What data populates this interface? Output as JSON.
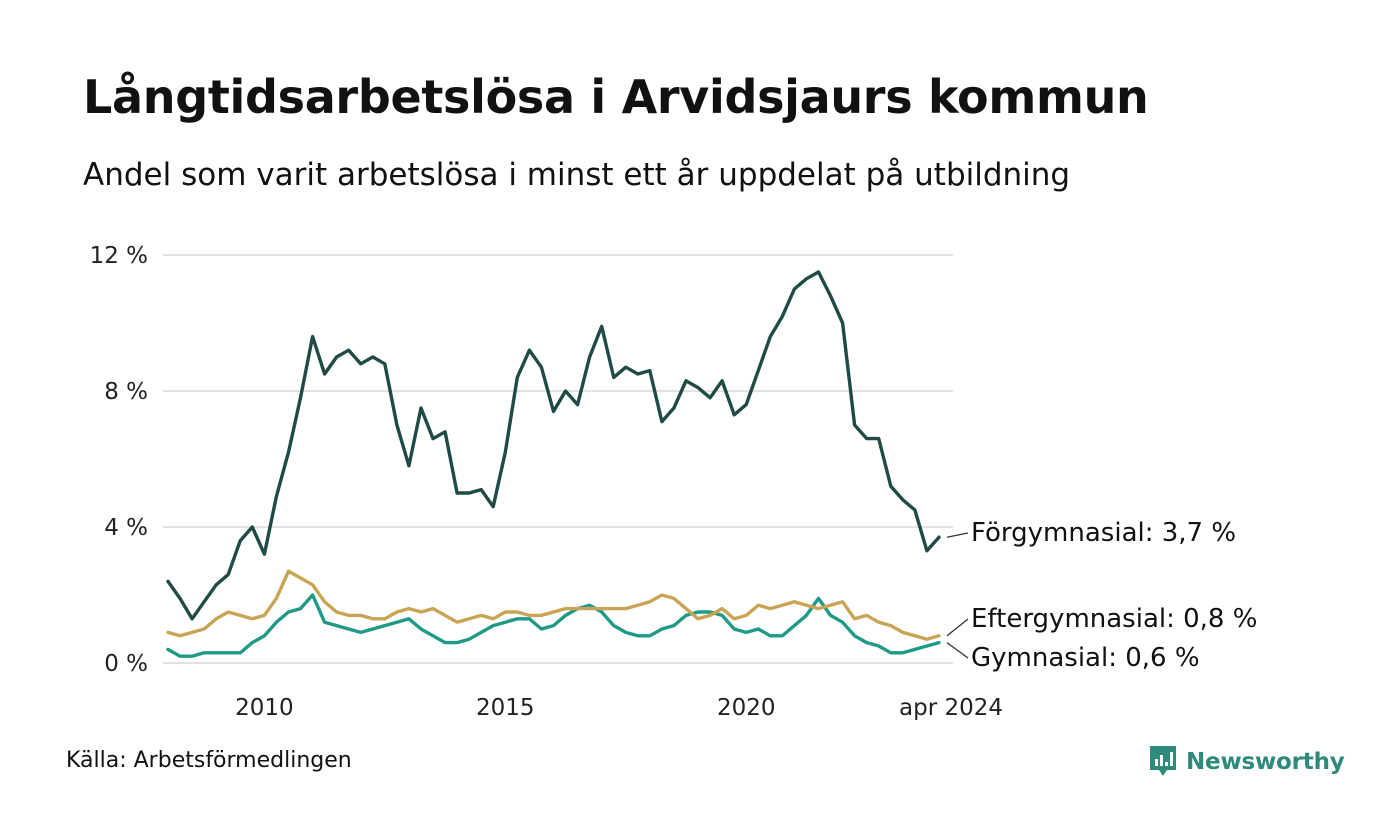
{
  "title": "Långtidsarbetslösa i Arvidsjaurs kommun",
  "subtitle": "Andel som varit arbetslösa i minst ett år uppdelat på utbildning",
  "source": "Källa: Arbetsförmedlingen",
  "brand": {
    "name": "Newsworthy",
    "color": "#2f8a7c"
  },
  "chart_data": {
    "type": "line",
    "title": "Långtidsarbetslösa i Arvidsjaurs kommun",
    "xlabel": "",
    "ylabel": "",
    "x_start": 2008.0,
    "x_step": 0.25,
    "xlim": [
      2008.0,
      2024.25
    ],
    "ylim": [
      0,
      12
    ],
    "yticks": [
      0,
      4,
      8,
      12
    ],
    "ytick_labels": [
      "0 %",
      "4 %",
      "8 %",
      "12 %"
    ],
    "xticks": [
      2010,
      2015,
      2020,
      2024.25
    ],
    "xtick_labels": [
      "2010",
      "2015",
      "2020",
      "apr 2024"
    ],
    "grid": true,
    "series": [
      {
        "name": "Förgymnasial",
        "label": "Förgymnasial: 3,7 %",
        "color": "#1f4a45",
        "values": [
          2.4,
          1.9,
          1.3,
          1.8,
          2.3,
          2.6,
          3.6,
          4.0,
          3.2,
          4.9,
          6.2,
          7.8,
          9.6,
          8.5,
          9.0,
          9.2,
          8.8,
          9.0,
          8.8,
          7.0,
          5.8,
          7.5,
          6.6,
          6.8,
          5.0,
          5.0,
          5.1,
          4.6,
          6.2,
          8.4,
          9.2,
          8.7,
          7.4,
          8.0,
          7.6,
          9.0,
          9.9,
          8.4,
          8.7,
          8.5,
          8.6,
          7.1,
          7.5,
          8.3,
          8.1,
          7.8,
          8.3,
          7.3,
          7.6,
          8.6,
          9.6,
          10.2,
          11.0,
          11.3,
          11.5,
          10.8,
          10.0,
          7.0,
          6.6,
          6.6,
          5.2,
          4.8,
          4.5,
          3.3,
          3.7
        ]
      },
      {
        "name": "Eftergymnasial",
        "label": "Eftergymnasial: 0,8 %",
        "color": "#c9a455",
        "values": [
          0.9,
          0.8,
          0.9,
          1.0,
          1.3,
          1.5,
          1.4,
          1.3,
          1.4,
          1.9,
          2.7,
          2.5,
          2.3,
          1.8,
          1.5,
          1.4,
          1.4,
          1.3,
          1.3,
          1.5,
          1.6,
          1.5,
          1.6,
          1.4,
          1.2,
          1.3,
          1.4,
          1.3,
          1.5,
          1.5,
          1.4,
          1.4,
          1.5,
          1.6,
          1.6,
          1.6,
          1.6,
          1.6,
          1.6,
          1.7,
          1.8,
          2.0,
          1.9,
          1.6,
          1.3,
          1.4,
          1.6,
          1.3,
          1.4,
          1.7,
          1.6,
          1.7,
          1.8,
          1.7,
          1.6,
          1.7,
          1.8,
          1.3,
          1.4,
          1.2,
          1.1,
          0.9,
          0.8,
          0.7,
          0.8
        ]
      },
      {
        "name": "Gymnasial",
        "label": "Gymnasial: 0,6 %",
        "color": "#1f9a86",
        "values": [
          0.4,
          0.2,
          0.2,
          0.3,
          0.3,
          0.3,
          0.3,
          0.6,
          0.8,
          1.2,
          1.5,
          1.6,
          2.0,
          1.2,
          1.1,
          1.0,
          0.9,
          1.0,
          1.1,
          1.2,
          1.3,
          1.0,
          0.8,
          0.6,
          0.6,
          0.7,
          0.9,
          1.1,
          1.2,
          1.3,
          1.3,
          1.0,
          1.1,
          1.4,
          1.6,
          1.7,
          1.5,
          1.1,
          0.9,
          0.8,
          0.8,
          1.0,
          1.1,
          1.4,
          1.5,
          1.5,
          1.4,
          1.0,
          0.9,
          1.0,
          0.8,
          0.8,
          1.1,
          1.4,
          1.9,
          1.4,
          1.2,
          0.8,
          0.6,
          0.5,
          0.3,
          0.3,
          0.4,
          0.5,
          0.6
        ]
      }
    ]
  }
}
